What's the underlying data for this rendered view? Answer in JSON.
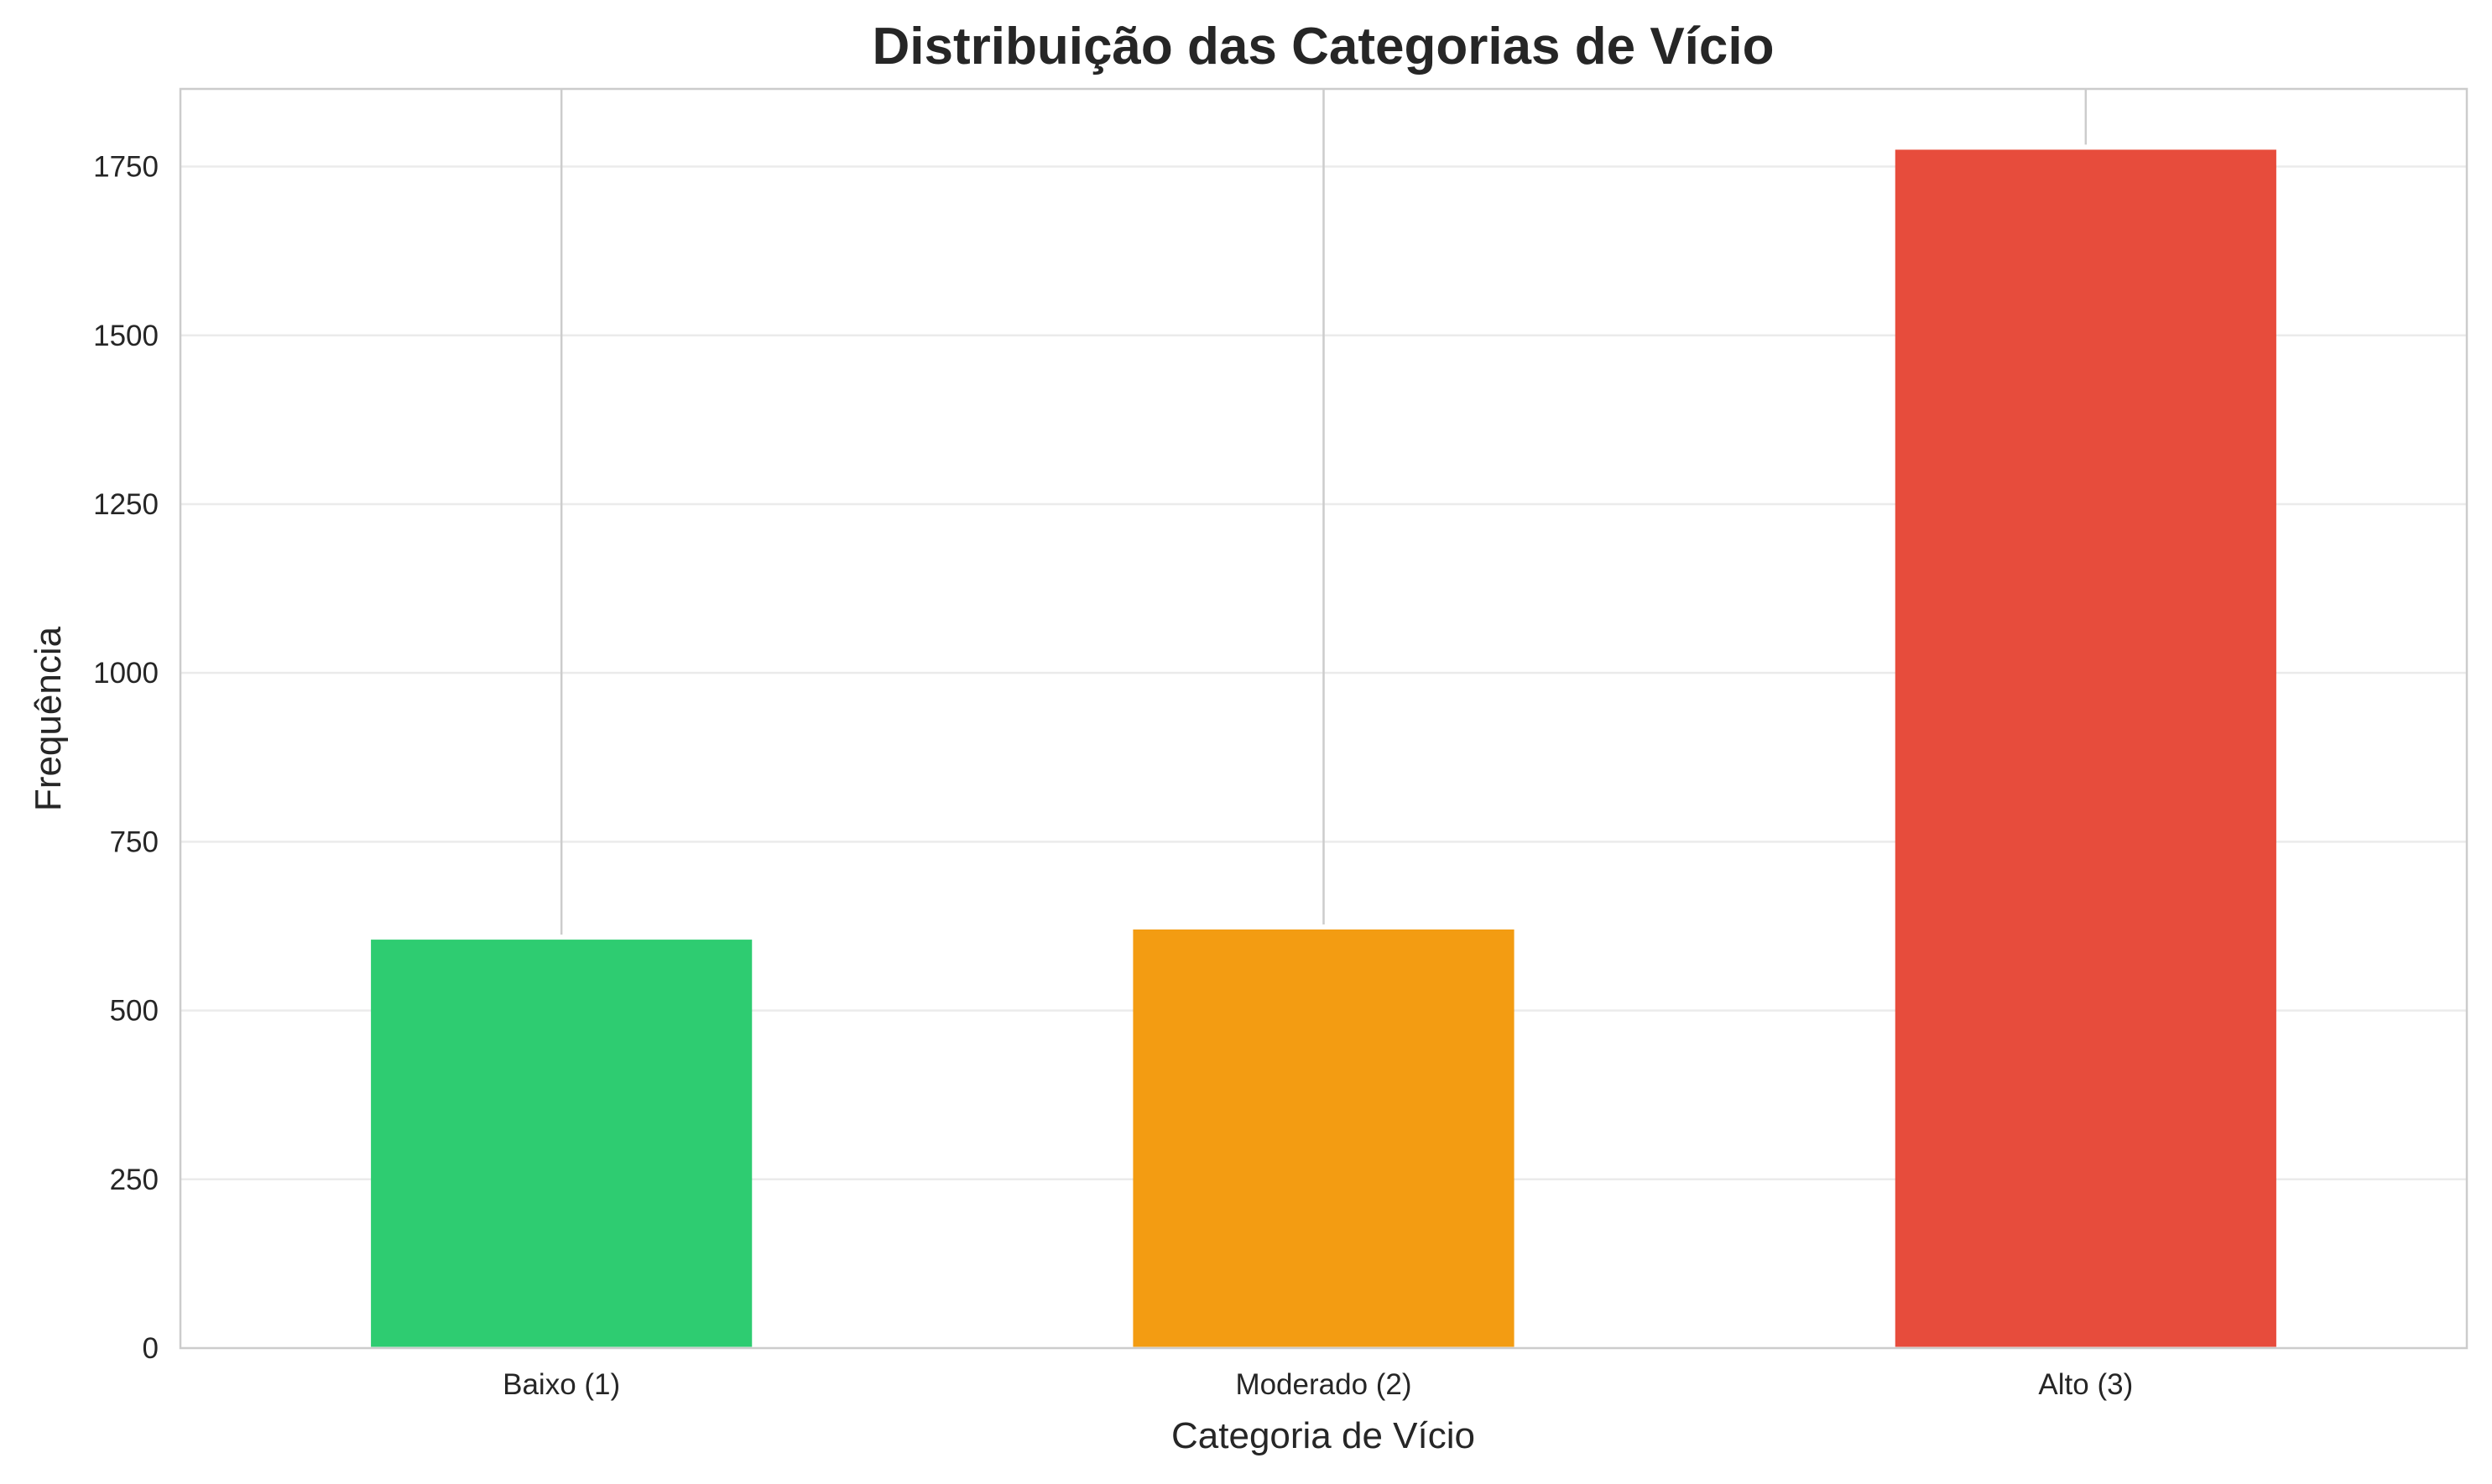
{
  "chart_data": {
    "type": "bar",
    "title": "Distribuição das Categorias de Vício",
    "xlabel": "Categoria de Vício",
    "ylabel": "Frequência",
    "categories": [
      "Baixo (1)",
      "Moderado (2)",
      "Alto (3)"
    ],
    "values": [
      605,
      620,
      1775
    ],
    "colors": [
      "#2ecc71",
      "#f39c12",
      "#e74c3c"
    ],
    "ylim": [
      0,
      1865
    ],
    "yticks": [
      0,
      250,
      500,
      750,
      1000,
      1250,
      1500,
      1750
    ],
    "ytick_labels": [
      "0",
      "250",
      "500",
      "750",
      "1000",
      "1250",
      "1500",
      "1750"
    ],
    "grid": "y",
    "legend": "none"
  },
  "colors": {
    "grid": "#ebebeb",
    "spine": "#cccccc",
    "category_line": "#cccccc",
    "text": "#262626",
    "background": "#ffffff"
  }
}
